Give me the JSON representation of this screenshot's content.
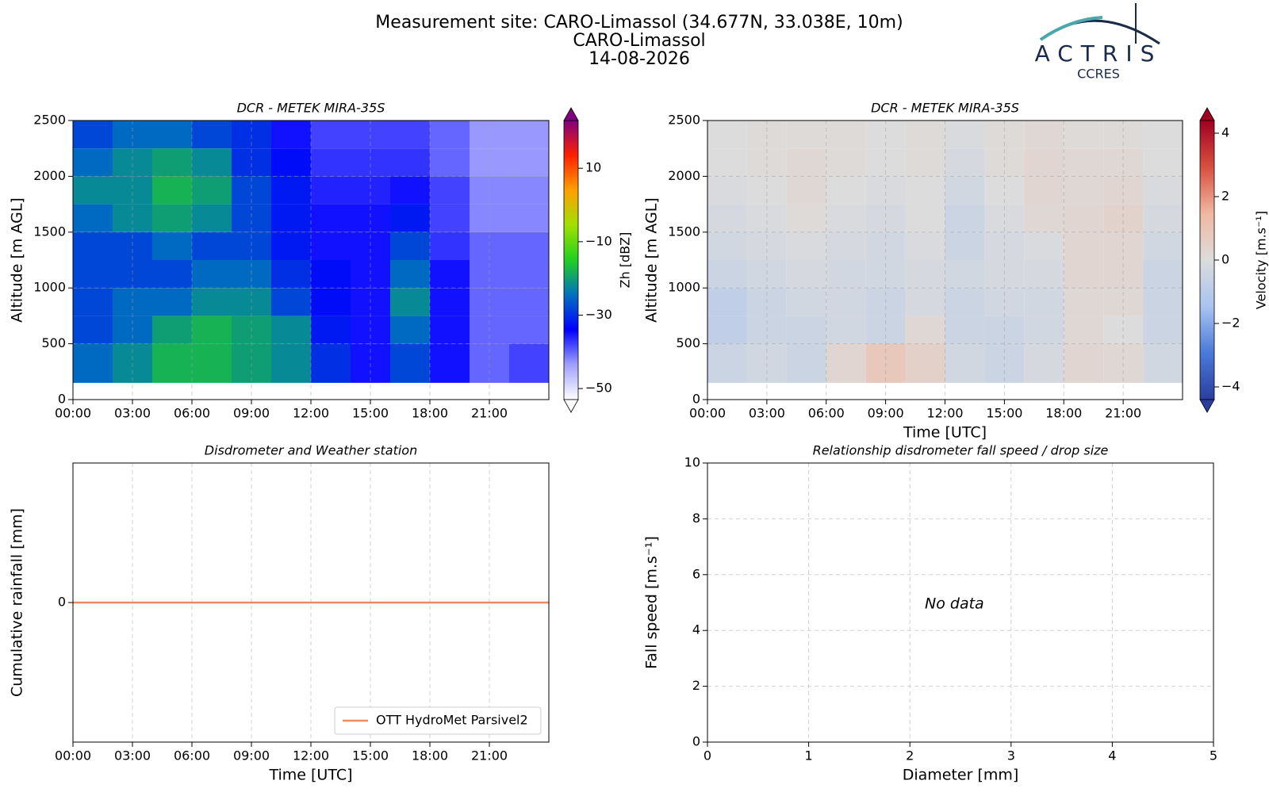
{
  "header": {
    "title": [
      "Measurement site: CARO-Limassol (34.677N, 33.038E, 10m)",
      "CARO-Limassol",
      "14-08-2026"
    ],
    "logo": "ACTRIS",
    "logo_sub": "CCRES"
  },
  "chart_data": [
    {
      "type": "heatmap",
      "title": "DCR - METEK MIRA-35S",
      "ylabel": "Altitude [m AGL]",
      "xlim": [
        0,
        24
      ],
      "xticks": [
        {
          "value": 0,
          "label": "00:00"
        },
        {
          "value": 3,
          "label": "03:00"
        },
        {
          "value": 6,
          "label": "06:00"
        },
        {
          "value": 9,
          "label": "09:00"
        },
        {
          "value": 12,
          "label": "12:00"
        },
        {
          "value": 15,
          "label": "15:00"
        },
        {
          "value": 18,
          "label": "18:00"
        },
        {
          "value": 21,
          "label": "21:00"
        }
      ],
      "ylim": [
        0,
        2500
      ],
      "yticks": [
        0,
        500,
        1000,
        1500,
        2000,
        2500
      ],
      "grid": true,
      "xbins": [
        0,
        2,
        4,
        6,
        8,
        10,
        12,
        14,
        16,
        18,
        20,
        22,
        24
      ],
      "ybins": [
        150,
        500,
        750,
        1000,
        1250,
        1500,
        1750,
        2000,
        2250,
        2500
      ],
      "z": [
        [
          -25,
          -22,
          -18,
          -18,
          -20,
          -22,
          -30,
          -35,
          -28,
          -35,
          -40,
          -38
        ],
        [
          -28,
          -25,
          -20,
          -18,
          -20,
          -22,
          -32,
          -35,
          -25,
          -35,
          -40,
          -40
        ],
        [
          -28,
          -25,
          -25,
          -22,
          -22,
          -28,
          -33,
          -35,
          -22,
          -35,
          -40,
          -40
        ],
        [
          -28,
          -28,
          -28,
          -25,
          -25,
          -30,
          -33,
          -35,
          -25,
          -35,
          -40,
          -40
        ],
        [
          -28,
          -28,
          -25,
          -28,
          -28,
          -32,
          -35,
          -35,
          -28,
          -37,
          -40,
          -40
        ],
        [
          -25,
          -22,
          -20,
          -22,
          -28,
          -32,
          -35,
          -35,
          -32,
          -38,
          -42,
          -42
        ],
        [
          -22,
          -22,
          -18,
          -20,
          -28,
          -32,
          -36,
          -36,
          -35,
          -38,
          -42,
          -42
        ],
        [
          -25,
          -22,
          -20,
          -22,
          -30,
          -33,
          -37,
          -37,
          -37,
          -40,
          -43,
          -43
        ],
        [
          -28,
          -25,
          -25,
          -28,
          -30,
          -35,
          -38,
          -38,
          -38,
          -40,
          -43,
          -43
        ]
      ],
      "zlim": [
        -53,
        23
      ],
      "colorbar_label": "Zh [dBZ]",
      "colorbar_ticks": [
        {
          "value": -50,
          "label": "−50"
        },
        {
          "value": -30,
          "label": "−30"
        },
        {
          "value": -10,
          "label": "−10"
        },
        10
      ],
      "colorscale": [
        "#ffffff",
        "#a0a0ff",
        "#0000ff",
        "#0070c0",
        "#20d020",
        "#a0e000",
        "#ffa000",
        "#ff2000",
        "#800080"
      ]
    },
    {
      "type": "heatmap",
      "title": "DCR - METEK MIRA-35S",
      "ylabel": "Altitude [m AGL]",
      "xlabel": "Time [UTC]",
      "xlim": [
        0,
        24
      ],
      "xticks": [
        {
          "value": 0,
          "label": "00:00"
        },
        {
          "value": 3,
          "label": "03:00"
        },
        {
          "value": 6,
          "label": "06:00"
        },
        {
          "value": 9,
          "label": "09:00"
        },
        {
          "value": 12,
          "label": "12:00"
        },
        {
          "value": 15,
          "label": "15:00"
        },
        {
          "value": 18,
          "label": "18:00"
        },
        {
          "value": 21,
          "label": "21:00"
        }
      ],
      "ylim": [
        0,
        2500
      ],
      "yticks": [
        0,
        500,
        1000,
        1500,
        2000,
        2500
      ],
      "grid": true,
      "xbins": [
        0,
        2,
        4,
        6,
        8,
        10,
        12,
        14,
        16,
        18,
        20,
        22,
        24
      ],
      "ybins": [
        150,
        500,
        750,
        1000,
        1250,
        1500,
        1750,
        2000,
        2250,
        2500
      ],
      "z": [
        [
          -0.5,
          -0.3,
          -0.5,
          0.3,
          0.8,
          0.5,
          -0.3,
          -0.5,
          -0.2,
          0.3,
          0.2,
          -0.3
        ],
        [
          -0.8,
          -0.5,
          -0.5,
          -0.3,
          -0.5,
          0.2,
          -0.5,
          -0.5,
          -0.3,
          0.2,
          0,
          -0.5
        ],
        [
          -0.8,
          -0.5,
          -0.3,
          -0.3,
          -0.5,
          -0.2,
          -0.5,
          -0.3,
          -0.3,
          0.2,
          0.2,
          -0.5
        ],
        [
          -0.5,
          -0.3,
          -0.2,
          -0.3,
          -0.3,
          -0.2,
          -0.3,
          -0.2,
          -0.2,
          0.3,
          0.3,
          -0.5
        ],
        [
          -0.3,
          -0.2,
          -0.1,
          -0.2,
          -0.3,
          -0.1,
          -0.5,
          -0.2,
          -0.1,
          0.3,
          0.3,
          -0.3
        ],
        [
          -0.2,
          -0.1,
          0.1,
          -0.1,
          -0.2,
          0,
          -0.5,
          -0.1,
          0.2,
          0.3,
          0.4,
          -0.2
        ],
        [
          -0.1,
          0,
          0.2,
          0,
          -0.1,
          0,
          -0.3,
          0,
          0.3,
          0.2,
          0.3,
          -0.1
        ],
        [
          0,
          0.1,
          0.2,
          0.1,
          0,
          0.1,
          -0.2,
          0.1,
          0.3,
          0.2,
          0.2,
          0
        ],
        [
          0,
          0.1,
          0.1,
          0.1,
          0,
          0.1,
          -0.1,
          0.1,
          0.2,
          0.1,
          0.1,
          0
        ]
      ],
      "zlim": [
        -4.4,
        4.4
      ],
      "colorbar_label": "Velocity [m.s⁻¹]",
      "colorbar_ticks": [
        {
          "value": -4,
          "label": "−4"
        },
        {
          "value": -2,
          "label": "−2"
        },
        0,
        2,
        4
      ],
      "colorscale": [
        "#2a3ea0",
        "#4a7ad8",
        "#a8c4f0",
        "#dcdcdc",
        "#f0b8a0",
        "#d85040",
        "#a00020"
      ]
    },
    {
      "type": "line",
      "title": "Disdrometer and Weather station",
      "xlabel": "Time [UTC]",
      "ylabel": "Cumulative rainfall [mm]",
      "xlim": [
        0,
        24
      ],
      "xticks": [
        {
          "value": 0,
          "label": "00:00"
        },
        {
          "value": 3,
          "label": "03:00"
        },
        {
          "value": 6,
          "label": "06:00"
        },
        {
          "value": 9,
          "label": "09:00"
        },
        {
          "value": 12,
          "label": "12:00"
        },
        {
          "value": 15,
          "label": "15:00"
        },
        {
          "value": 18,
          "label": "18:00"
        },
        {
          "value": 21,
          "label": "21:00"
        }
      ],
      "ylim": [
        -1,
        1
      ],
      "yticks": [
        0
      ],
      "grid": true,
      "legend": "lower right",
      "series": [
        {
          "name": "OTT HydroMet Parsivel2",
          "color": "#ef8a5e",
          "x": [
            0,
            24
          ],
          "values": [
            0,
            0
          ]
        }
      ]
    },
    {
      "type": "scatter",
      "title": "Relationship disdrometer fall speed / drop size",
      "xlabel": "Diameter [mm]",
      "ylabel": "Fall speed [m.s⁻¹]",
      "xlim": [
        0,
        5
      ],
      "xticks": [
        0,
        1,
        2,
        3,
        4,
        5
      ],
      "ylim": [
        0,
        10
      ],
      "yticks": [
        0,
        2,
        4,
        6,
        8,
        10
      ],
      "grid": true,
      "annotation": "No data"
    }
  ]
}
